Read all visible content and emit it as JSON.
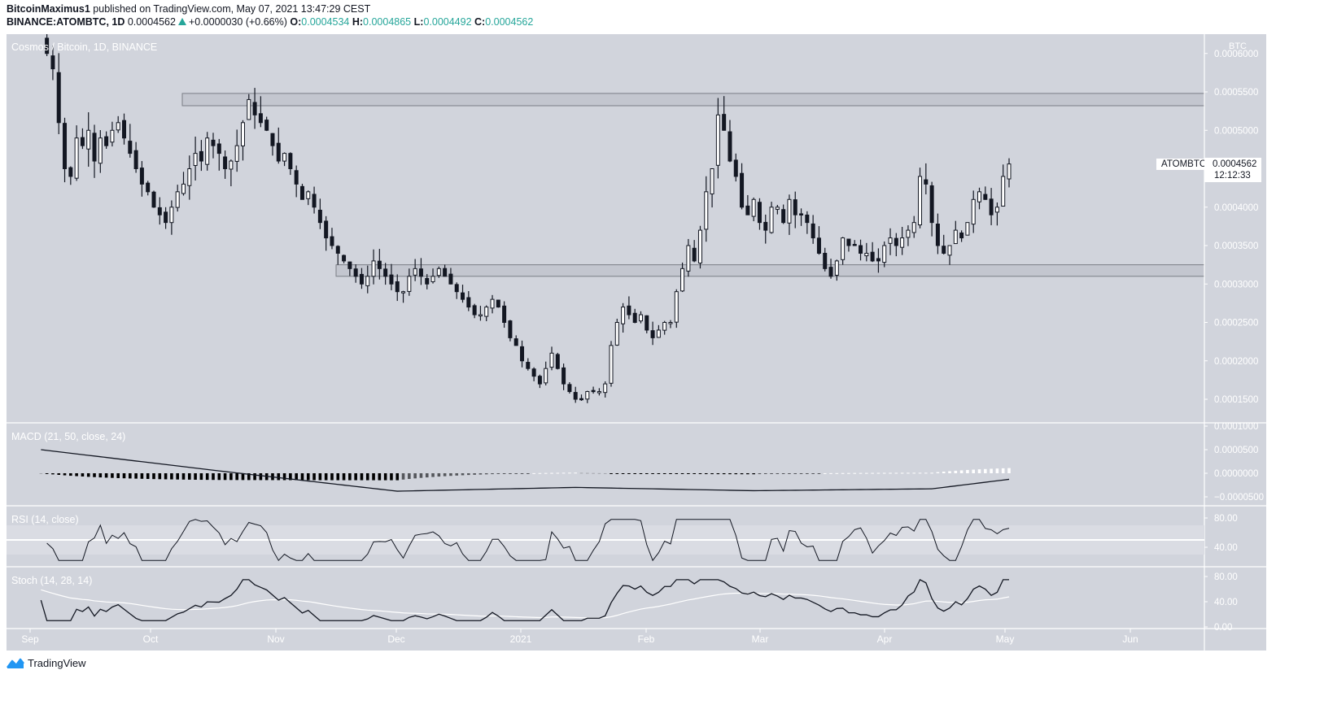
{
  "header": {
    "publisher": "BitcoinMaximus1",
    "published_text": " published on TradingView.com, May 07, 2021 13:47:29 CEST",
    "symbol_line": "BINANCE:ATOMBTC, 1D",
    "last": "0.0004562",
    "change": "+0.0000030 (+0.66%)",
    "o_label": "O:",
    "o": "0.0004534",
    "h_label": "H:",
    "h": "0.0004865",
    "l_label": "L:",
    "l": "0.0004492",
    "c_label": "C:",
    "c": "0.0004562"
  },
  "main_legend": "Cosmos / Bitcoin, 1D, BINANCE",
  "price_axis": {
    "unit": "BTC",
    "ticks": [
      "0.0006000",
      "0.0005500",
      "0.0005000",
      "0.0004000",
      "0.0003500",
      "0.0003000",
      "0.0002500",
      "0.0002000",
      "0.0001500"
    ]
  },
  "last_price_label": {
    "symbol": "ATOMBTC",
    "price": "0.0004562",
    "countdown": "12:12:33"
  },
  "indicators": {
    "macd": {
      "label": "MACD (21, 50, close, 24)",
      "ticks": [
        "0.0001000",
        "0.0000500",
        "0.0000000",
        "−0.0000500"
      ]
    },
    "rsi": {
      "label": "RSI (14, close)",
      "ticks": [
        "80.00",
        "40.00"
      ]
    },
    "stoch": {
      "label": "Stoch (14, 28, 14)",
      "ticks": [
        "80.00",
        "40.00",
        "0.00"
      ]
    }
  },
  "time_axis": [
    "Sep",
    "Oct",
    "Nov",
    "Dec",
    "2021",
    "Feb",
    "Mar",
    "Apr",
    "May",
    "Jun"
  ],
  "footer": {
    "brand": "TradingView"
  },
  "colors": {
    "background": "#d1d4dc",
    "axis_text": "#ffffff",
    "bull_body": "#ffffff",
    "bear_body": "#131722",
    "zone_fill": "#c3c6cf",
    "zone_stroke": "#7b7e86",
    "positive_change": "#26a69a"
  },
  "chart_data": {
    "type": "candlestick",
    "title": "Cosmos / Bitcoin, 1D, BINANCE",
    "xlabel": "",
    "ylabel": "BTC",
    "ylim": [
      0.00012,
      0.00062
    ],
    "x_ticks": [
      "Sep",
      "Oct",
      "Nov",
      "Dec",
      "2021",
      "Feb",
      "Mar",
      "Apr",
      "May",
      "Jun"
    ],
    "horizontal_zones": [
      {
        "name": "resistance",
        "from": 0.000532,
        "to": 0.000548
      },
      {
        "name": "support",
        "from": 0.00031,
        "to": 0.000325
      }
    ],
    "closes_approx": [
      0.00062,
      0.0006,
      0.00058,
      0.00051,
      0.00045,
      0.00044,
      0.00049,
      0.00048,
      0.0005,
      0.00046,
      0.00049,
      0.00048,
      0.0005,
      0.00051,
      0.00049,
      0.00047,
      0.00045,
      0.00043,
      0.00042,
      0.0004,
      0.00039,
      0.00038,
      0.0004,
      0.00042,
      0.00043,
      0.00045,
      0.00047,
      0.00046,
      0.00049,
      0.00048,
      0.00047,
      0.00045,
      0.00046,
      0.00048,
      0.00051,
      0.00054,
      0.00052,
      0.00051,
      0.0005,
      0.00048,
      0.00046,
      0.00047,
      0.00045,
      0.00043,
      0.00041,
      0.00042,
      0.0004,
      0.00038,
      0.00036,
      0.00035,
      0.00034,
      0.00033,
      0.00032,
      0.00031,
      0.0003,
      0.00031,
      0.00033,
      0.00032,
      0.00031,
      0.0003,
      0.00029,
      0.00029,
      0.00031,
      0.00032,
      0.00031,
      0.0003,
      0.00031,
      0.00032,
      0.00031,
      0.0003,
      0.00029,
      0.00028,
      0.00027,
      0.00026,
      0.00026,
      0.00027,
      0.00028,
      0.00027,
      0.00025,
      0.00023,
      0.00022,
      0.0002,
      0.00019,
      0.00018,
      0.00017,
      0.00019,
      0.00021,
      0.00019,
      0.00017,
      0.00016,
      0.00015,
      0.00015,
      0.00016,
      0.00016,
      0.00016,
      0.00017,
      0.00022,
      0.00025,
      0.00027,
      0.00026,
      0.00025,
      0.00026,
      0.00024,
      0.00023,
      0.00024,
      0.00025,
      0.00025,
      0.00029,
      0.00032,
      0.00035,
      0.00033,
      0.00037,
      0.00042,
      0.00045,
      0.00052,
      0.0005,
      0.00046,
      0.00044,
      0.0004,
      0.00039,
      0.00041,
      0.00038,
      0.00037,
      0.0004,
      0.0004,
      0.00038,
      0.00041,
      0.00039,
      0.00039,
      0.00038,
      0.00036,
      0.00034,
      0.00032,
      0.00031,
      0.00033,
      0.00036,
      0.00035,
      0.00035,
      0.00034,
      0.00034,
      0.00033,
      0.00033,
      0.00035,
      0.00036,
      0.00035,
      0.00036,
      0.00037,
      0.00038,
      0.00044,
      0.00043,
      0.00038,
      0.00035,
      0.00034,
      0.00035,
      0.00037,
      0.00036,
      0.00038,
      0.00041,
      0.00042,
      0.00041,
      0.00039,
      0.0004,
      0.00044,
      0.0004562
    ],
    "macd": {
      "x_days": [
        0,
        30,
        60,
        90,
        120,
        150,
        170,
        185,
        200,
        215,
        230,
        250
      ],
      "macd_line": [
        5e-05,
        5e-06,
        -3.8e-05,
        -3e-05,
        -3.7e-05,
        -3.3e-05,
        -2e-06,
        6e-05,
        3.5e-05,
        1e-05,
        1e-05,
        2e-05
      ]
    },
    "rsi": {
      "upper_band": 70,
      "mid": 50,
      "lower_band": 30,
      "last": 66
    },
    "stoch": {
      "last_k": 68,
      "last_d": 58
    }
  }
}
